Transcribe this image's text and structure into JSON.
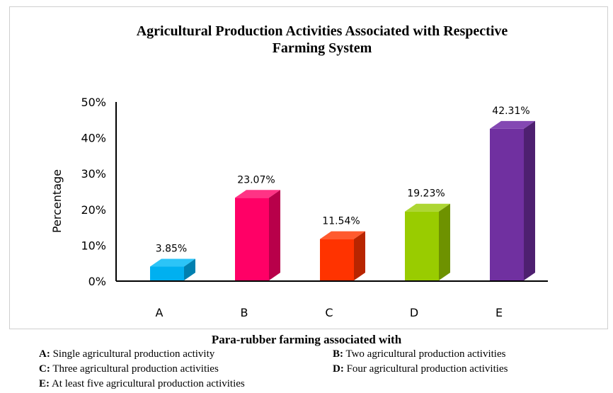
{
  "chart_data": {
    "type": "bar",
    "title_lines": [
      "Agricultural Production Activities Associated with Respective",
      "Farming System"
    ],
    "ylabel": "Percentage",
    "ylim": [
      0,
      50
    ],
    "yticks": [
      "0%",
      "10%",
      "20%",
      "30%",
      "40%",
      "50%"
    ],
    "categories": [
      "A",
      "B",
      "C",
      "D",
      "E"
    ],
    "values": [
      3.85,
      23.07,
      11.54,
      19.23,
      42.31
    ],
    "value_labels": [
      "3.85%",
      "23.07%",
      "11.54%",
      "19.23%",
      "42.31%"
    ],
    "colors": [
      {
        "front": "#00B0F0",
        "top": "#2CC4F7",
        "side": "#0080B0"
      },
      {
        "front": "#FF0066",
        "top": "#FF3385",
        "side": "#B8004A"
      },
      {
        "front": "#FF3300",
        "top": "#FF5A2E",
        "side": "#B82500"
      },
      {
        "front": "#99CC00",
        "top": "#ADD633",
        "side": "#6E9200"
      },
      {
        "front": "#7030A0",
        "top": "#8448B3",
        "side": "#4E2070"
      }
    ],
    "legend_title": "Para-rubber farming associated with",
    "legend_rows": [
      {
        "left": {
          "key": "A:",
          "text": "Single agricultural production activity"
        },
        "right": {
          "key": "B:",
          "text": "Two agricultural production activities"
        }
      },
      {
        "left": {
          "key": "C:",
          "text": "Three agricultural production activities"
        },
        "right": {
          "key": "D:",
          "text": "Four agricultural production activities"
        }
      },
      {
        "left": {
          "key": "E:",
          "text": "At least five agricultural production activities"
        }
      }
    ]
  }
}
